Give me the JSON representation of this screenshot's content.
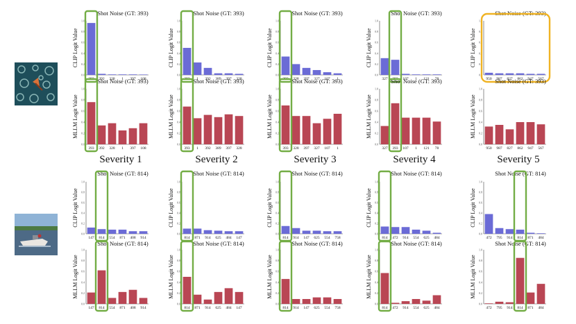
{
  "figure": {
    "row_labels": {
      "top": "CLIP Logit Value",
      "bottom": "MLLM Logit Value"
    },
    "severity_captions": [
      "Severity 1",
      "Severity 2",
      "Severity 3",
      "Severity 4",
      "Severity 5"
    ],
    "colors": {
      "clip_bar": "#6b6bd6",
      "mllm_bar": "#b94654",
      "gt_box": "#73ad45",
      "fail_box": "#f0b323",
      "axis": "#444444"
    }
  },
  "examples": [
    {
      "name": "underwater-scene",
      "icon": "underwater-image-icon"
    },
    {
      "name": "boat-scene",
      "icon": "boat-image-icon"
    }
  ],
  "chart_data": [
    {
      "type": "bar",
      "title": "Shot Noise (GT: 393)",
      "ylabel": "CLIP Logit Value",
      "ylim": [
        0,
        1.0
      ],
      "yticks": [
        "0.0",
        "0.2",
        "0.4",
        "0.6",
        "0.8",
        "1.0"
      ],
      "categories": [
        "393",
        "392",
        "328",
        "1",
        "397",
        "108"
      ],
      "values": [
        0.96,
        0.02,
        0.01,
        0.01,
        0.01,
        0.005
      ],
      "highlight_index": 0,
      "highlight": "gt"
    },
    {
      "type": "bar",
      "title": "Shot Noise (GT: 393)",
      "ylabel": "CLIP Logit Value",
      "ylim": [
        0,
        1.0
      ],
      "yticks": [
        "0.0",
        "0.2",
        "0.4",
        "0.6",
        "0.8",
        "1.0"
      ],
      "categories": [
        "393",
        "1",
        "392",
        "389",
        "397",
        "328"
      ],
      "values": [
        0.5,
        0.23,
        0.13,
        0.03,
        0.03,
        0.02
      ],
      "highlight_index": 0,
      "highlight": "gt"
    },
    {
      "type": "bar",
      "title": "Shot Noise (GT: 393)",
      "ylabel": "CLIP Logit Value",
      "ylim": [
        0,
        1.0
      ],
      "yticks": [
        "0.0",
        "0.2",
        "0.4",
        "0.6",
        "0.8",
        "1.0"
      ],
      "categories": [
        "393",
        "328",
        "397",
        "327",
        "107",
        "1"
      ],
      "values": [
        0.34,
        0.2,
        0.13,
        0.09,
        0.05,
        0.03
      ],
      "highlight_index": 0,
      "highlight": "gt"
    },
    {
      "type": "bar",
      "title": "Shot Noise (GT: 393)",
      "ylabel": "CLIP Logit Value",
      "ylim": [
        0,
        1.0
      ],
      "yticks": [
        "0.0",
        "0.2",
        "0.4",
        "0.6",
        "0.8",
        "1.0"
      ],
      "categories": [
        "327",
        "393",
        "107",
        "1",
        "121",
        "78"
      ],
      "values": [
        0.31,
        0.28,
        0.02,
        0.01,
        0.01,
        0.01
      ],
      "highlight_index": 1,
      "highlight": "gt"
    },
    {
      "type": "bar",
      "title": "Shot Noise (GT: 393)",
      "ylabel": "CLIP Logit Value",
      "ylim": [
        0,
        1.0
      ],
      "yticks": [
        "0.0",
        "0.2",
        "0.4",
        "0.6",
        "0.8",
        "1.0"
      ],
      "categories": [
        "950",
        "987",
        "827",
        "862",
        "947",
        "567"
      ],
      "values": [
        0.04,
        0.03,
        0.03,
        0.03,
        0.02,
        0.02
      ],
      "highlight": "fail"
    },
    {
      "type": "bar",
      "title": "Shot Noise (GT: 393)",
      "ylabel": "MLLM Logit Value",
      "ylim": [
        0,
        1.0
      ],
      "yticks": [
        "0.0",
        "0.2",
        "0.4",
        "0.6",
        "0.8",
        "1.0"
      ],
      "categories": [
        "393",
        "392",
        "328",
        "1",
        "397",
        "108"
      ],
      "values": [
        0.76,
        0.34,
        0.38,
        0.25,
        0.29,
        0.38
      ],
      "highlight_index": 0,
      "highlight": "gt"
    },
    {
      "type": "bar",
      "title": "Shot Noise (GT: 393)",
      "ylabel": "MLLM Logit Value",
      "ylim": [
        0,
        1.0
      ],
      "yticks": [
        "0.0",
        "0.2",
        "0.4",
        "0.6",
        "0.8",
        "1.0"
      ],
      "categories": [
        "393",
        "1",
        "392",
        "389",
        "397",
        "328"
      ],
      "values": [
        0.68,
        0.47,
        0.53,
        0.49,
        0.54,
        0.51
      ],
      "highlight_index": 0,
      "highlight": "gt"
    },
    {
      "type": "bar",
      "title": "Shot Noise (GT: 393)",
      "ylabel": "MLLM Logit Value",
      "ylim": [
        0,
        1.0
      ],
      "yticks": [
        "0.0",
        "0.2",
        "0.4",
        "0.6",
        "0.8",
        "1.0"
      ],
      "categories": [
        "393",
        "328",
        "397",
        "327",
        "107",
        "1"
      ],
      "values": [
        0.7,
        0.51,
        0.51,
        0.38,
        0.46,
        0.55
      ],
      "highlight_index": 0,
      "highlight": "gt"
    },
    {
      "type": "bar",
      "title": "Shot Noise (GT: 393)",
      "ylabel": "MLLM Logit Value",
      "ylim": [
        0,
        1.0
      ],
      "yticks": [
        "0.0",
        "0.2",
        "0.4",
        "0.6",
        "0.8",
        "1.0"
      ],
      "categories": [
        "327",
        "393",
        "107",
        "1",
        "121",
        "78"
      ],
      "values": [
        0.33,
        0.74,
        0.48,
        0.48,
        0.48,
        0.41
      ],
      "highlight_index": 1,
      "highlight": "gt"
    },
    {
      "type": "bar",
      "title": "Shot Noise (GT: 393)",
      "ylabel": "MLLM Logit Value",
      "ylim": [
        0,
        1.0
      ],
      "yticks": [
        "0.0",
        "0.2",
        "0.4",
        "0.6",
        "0.8",
        "1.0"
      ],
      "categories": [
        "950",
        "987",
        "827",
        "862",
        "947",
        "567"
      ],
      "values": [
        0.32,
        0.35,
        0.27,
        0.4,
        0.4,
        0.36
      ]
    },
    {
      "type": "bar",
      "title": "Shot Noise (GT: 814)",
      "ylabel": "CLIP Logit Value",
      "ylim": [
        0,
        1.0
      ],
      "yticks": [
        "0.0",
        "0.2",
        "0.4",
        "0.6",
        "0.8",
        "1.0"
      ],
      "categories": [
        "147",
        "814",
        "554",
        "871",
        "408",
        "914"
      ],
      "values": [
        0.12,
        0.09,
        0.08,
        0.08,
        0.05,
        0.05
      ],
      "highlight_index": 1,
      "highlight": "gt"
    },
    {
      "type": "bar",
      "title": "Shot Noise (GT: 814)",
      "ylabel": "CLIP Logit Value",
      "ylim": [
        0,
        1.0
      ],
      "yticks": [
        "0.0",
        "0.2",
        "0.4",
        "0.6",
        "0.8",
        "1.0"
      ],
      "categories": [
        "814",
        "871",
        "914",
        "625",
        "484",
        "147"
      ],
      "values": [
        0.1,
        0.1,
        0.07,
        0.06,
        0.05,
        0.05
      ],
      "highlight_index": 0,
      "highlight": "gt"
    },
    {
      "type": "bar",
      "title": "Shot Noise (GT: 814)",
      "ylabel": "CLIP Logit Value",
      "ylim": [
        0,
        1.0
      ],
      "yticks": [
        "0.0",
        "0.2",
        "0.4",
        "0.6",
        "0.8",
        "1.0"
      ],
      "categories": [
        "814",
        "914",
        "147",
        "625",
        "554",
        "758"
      ],
      "values": [
        0.15,
        0.11,
        0.06,
        0.06,
        0.05,
        0.05
      ],
      "highlight_index": 0,
      "highlight": "gt"
    },
    {
      "type": "bar",
      "title": "Shot Noise (GT: 814)",
      "ylabel": "CLIP Logit Value",
      "ylim": [
        0,
        1.0
      ],
      "yticks": [
        "0.0",
        "0.2",
        "0.4",
        "0.6",
        "0.8",
        "1.0"
      ],
      "categories": [
        "814",
        "472",
        "914",
        "554",
        "625",
        "484"
      ],
      "values": [
        0.14,
        0.13,
        0.13,
        0.08,
        0.06,
        0.02
      ],
      "highlight_index": 0,
      "highlight": "gt"
    },
    {
      "type": "bar",
      "title": "Shot Noise (GT: 814)",
      "ylabel": "CLIP Logit Value",
      "ylim": [
        0,
        1.0
      ],
      "yticks": [
        "0.0",
        "0.2",
        "0.4",
        "0.6",
        "0.8",
        "1.0"
      ],
      "categories": [
        "472",
        "795",
        "914",
        "814",
        "871",
        "484"
      ],
      "values": [
        0.38,
        0.11,
        0.09,
        0.08,
        0.02,
        0.01
      ],
      "highlight_index": 3,
      "highlight": "gt"
    },
    {
      "type": "bar",
      "title": "Shot Noise (GT: 814)",
      "ylabel": "MLLM Logit Value",
      "ylim": [
        0,
        1.0
      ],
      "yticks": [
        "0.0",
        "0.2",
        "0.4",
        "0.6",
        "0.8",
        "1.0"
      ],
      "categories": [
        "147",
        "814",
        "554",
        "871",
        "408",
        "914"
      ],
      "values": [
        0.21,
        0.62,
        0.11,
        0.22,
        0.26,
        0.11
      ],
      "highlight_index": 1,
      "highlight": "gt"
    },
    {
      "type": "bar",
      "title": "Shot Noise (GT: 814)",
      "ylabel": "MLLM Logit Value",
      "ylim": [
        0,
        1.0
      ],
      "yticks": [
        "0.0",
        "0.2",
        "0.4",
        "0.6",
        "0.8",
        "1.0"
      ],
      "categories": [
        "814",
        "871",
        "914",
        "625",
        "484",
        "147"
      ],
      "values": [
        0.5,
        0.17,
        0.08,
        0.22,
        0.29,
        0.22
      ],
      "highlight_index": 0,
      "highlight": "gt"
    },
    {
      "type": "bar",
      "title": "Shot Noise (GT: 814)",
      "ylabel": "MLLM Logit Value",
      "ylim": [
        0,
        1.0
      ],
      "yticks": [
        "0.0",
        "0.2",
        "0.4",
        "0.6",
        "0.8",
        "1.0"
      ],
      "categories": [
        "814",
        "914",
        "147",
        "625",
        "554",
        "758"
      ],
      "values": [
        0.46,
        0.09,
        0.09,
        0.12,
        0.12,
        0.09
      ],
      "highlight_index": 0,
      "highlight": "gt"
    },
    {
      "type": "bar",
      "title": "Shot Noise (GT: 814)",
      "ylabel": "MLLM Logit Value",
      "ylim": [
        0,
        1.0
      ],
      "yticks": [
        "0.0",
        "0.2",
        "0.4",
        "0.6",
        "0.8",
        "1.0"
      ],
      "categories": [
        "814",
        "472",
        "914",
        "554",
        "625",
        "484"
      ],
      "values": [
        0.57,
        0.02,
        0.05,
        0.09,
        0.06,
        0.16
      ],
      "highlight_index": 0,
      "highlight": "gt"
    },
    {
      "type": "bar",
      "title": "Shot Noise (GT: 814)",
      "ylabel": "MLLM Logit Value",
      "ylim": [
        0,
        1.0
      ],
      "yticks": [
        "0.0",
        "0.2",
        "0.4",
        "0.6",
        "0.8",
        "1.0"
      ],
      "categories": [
        "472",
        "795",
        "914",
        "814",
        "871",
        "484"
      ],
      "values": [
        0.01,
        0.04,
        0.03,
        0.85,
        0.21,
        0.37
      ],
      "highlight_index": 3,
      "highlight": "gt"
    }
  ]
}
